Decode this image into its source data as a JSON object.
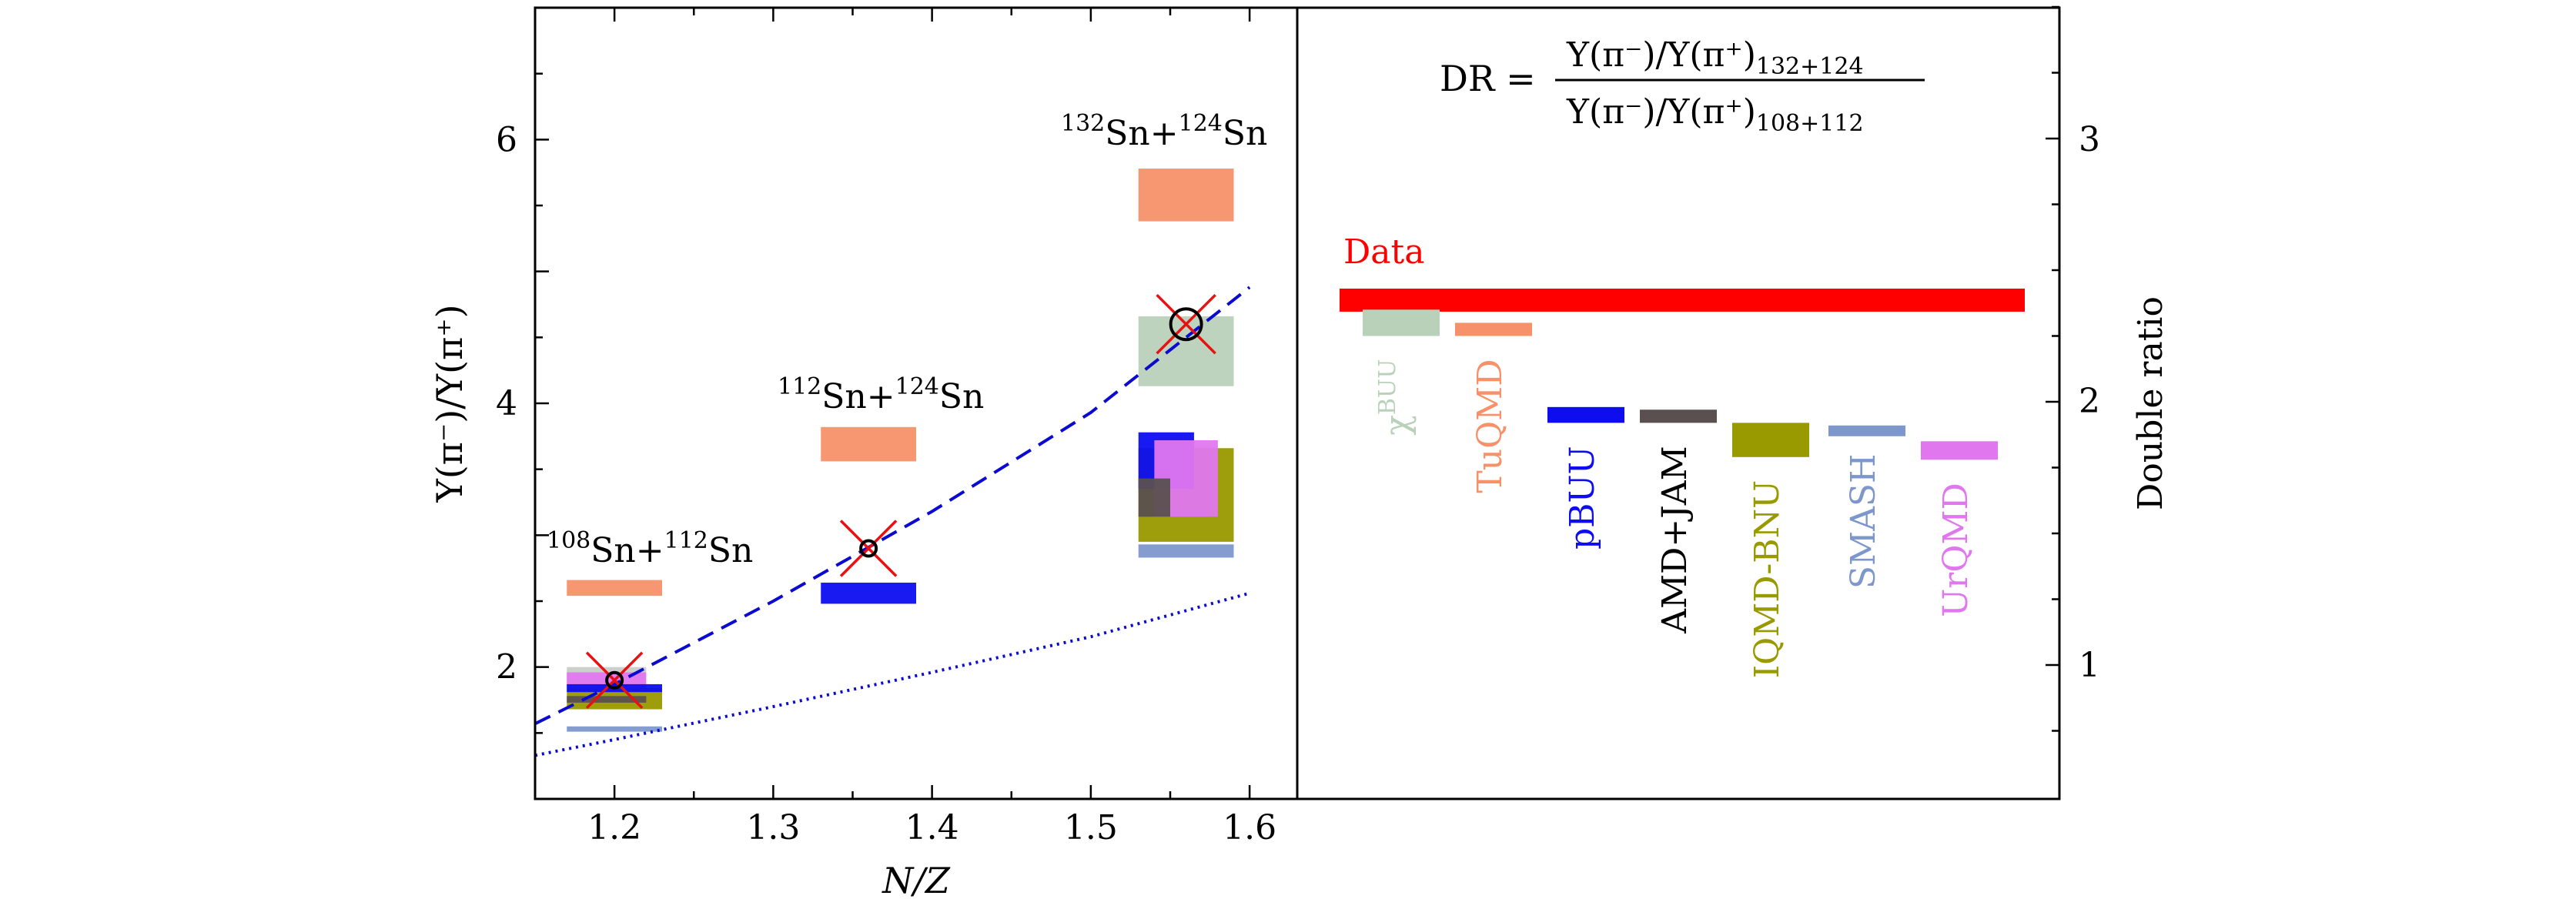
{
  "figure": {
    "background": "#ffffff",
    "frame_color": "#000000"
  },
  "chart_data": [
    {
      "type": "scatter",
      "xlabel": "N/Z",
      "ylabel": "Y(π⁻)/Y(π⁺)",
      "xlim": [
        1.15,
        1.63
      ],
      "ylim": [
        1.0,
        7.0
      ],
      "x_ticks": [
        "1.2",
        "1.3",
        "1.4",
        "1.5",
        "1.6"
      ],
      "y_ticks": [
        "2",
        "4",
        "6"
      ],
      "grid": false,
      "system_labels": [
        {
          "pre": "108",
          "a": "Sn+",
          "pre2": "112",
          "b": "Sn"
        },
        {
          "pre": "112",
          "a": "Sn+",
          "pre2": "124",
          "b": "Sn"
        },
        {
          "pre": "132",
          "a": "Sn+",
          "pre2": "124",
          "b": "Sn"
        }
      ],
      "data_points": [
        {
          "x": 1.2,
          "y": 1.9
        },
        {
          "x": 1.36,
          "y": 2.9
        },
        {
          "x": 1.56,
          "y": 4.6
        }
      ],
      "dashed_fit": [
        [
          1.15,
          1.57
        ],
        [
          1.2,
          1.87
        ],
        [
          1.3,
          2.5
        ],
        [
          1.4,
          3.18
        ],
        [
          1.5,
          3.93
        ],
        [
          1.6,
          4.88
        ]
      ],
      "dotted_curve": [
        [
          1.15,
          1.33
        ],
        [
          1.2,
          1.45
        ],
        [
          1.3,
          1.7
        ],
        [
          1.4,
          1.96
        ],
        [
          1.5,
          2.23
        ],
        [
          1.6,
          2.56
        ]
      ],
      "model_bands": [
        {
          "model": "TuQMD",
          "color": "#f7916a",
          "x": [
            1.17,
            1.23
          ],
          "y": [
            2.54,
            2.66
          ]
        },
        {
          "model": "TuQMD",
          "color": "#f7916a",
          "x": [
            1.33,
            1.39
          ],
          "y": [
            3.56,
            3.82
          ]
        },
        {
          "model": "TuQMD",
          "color": "#f7916a",
          "x": [
            1.53,
            1.59
          ],
          "y": [
            5.38,
            5.78
          ]
        },
        {
          "model": "pBUU",
          "color": "#0d0df0",
          "x": [
            1.33,
            1.39
          ],
          "y": [
            2.48,
            2.64
          ]
        },
        {
          "model": "χBUU",
          "color": "#b9d1b9",
          "x": [
            1.53,
            1.59
          ],
          "y": [
            4.13,
            4.66
          ]
        },
        {
          "model": "IQMD-BNU",
          "color": "#999900",
          "x": [
            1.53,
            1.59
          ],
          "y": [
            2.95,
            3.66
          ]
        },
        {
          "model": "pBUU",
          "color": "#0d0df0",
          "x": [
            1.53,
            1.565
          ],
          "y": [
            3.35,
            3.78
          ]
        },
        {
          "model": "UrQMD",
          "color": "#e077ef",
          "x": [
            1.54,
            1.58
          ],
          "y": [
            3.14,
            3.72
          ]
        },
        {
          "model": "AMD+JAM",
          "color": "#5a5050",
          "x": [
            1.53,
            1.55
          ],
          "y": [
            3.14,
            3.43
          ]
        },
        {
          "model": "SMASH",
          "color": "#7d97cc",
          "x": [
            1.53,
            1.59
          ],
          "y": [
            2.83,
            2.93
          ]
        },
        {
          "model": "χBUU",
          "color": "#c9cdc9",
          "x": [
            1.17,
            1.22
          ],
          "y": [
            1.85,
            2.0
          ]
        },
        {
          "model": "UrQMD",
          "color": "#e077ef",
          "x": [
            1.17,
            1.22
          ],
          "y": [
            1.84,
            1.96
          ]
        },
        {
          "model": "IQMD-BNU",
          "color": "#999900",
          "x": [
            1.17,
            1.23
          ],
          "y": [
            1.68,
            1.84
          ]
        },
        {
          "model": "pBUU",
          "color": "#0d0df0",
          "x": [
            1.17,
            1.23
          ],
          "y": [
            1.81,
            1.87
          ]
        },
        {
          "model": "AMD+JAM",
          "color": "#5a5050",
          "x": [
            1.17,
            1.22
          ],
          "y": [
            1.73,
            1.78
          ]
        },
        {
          "model": "SMASH",
          "color": "#7d97cc",
          "x": [
            1.17,
            1.23
          ],
          "y": [
            1.51,
            1.55
          ]
        }
      ]
    },
    {
      "type": "bar",
      "ylabel": "Double ratio",
      "ylim": [
        0.5,
        2.0
      ],
      "y_ticks": [
        "1",
        "2",
        "3"
      ],
      "formula": {
        "lhs": "DR",
        "numerator": "Y(π⁻)/Y(π⁺)",
        "numerator_sub": "132+124",
        "denominator": "Y(π⁻)/Y(π⁺)",
        "denominator_sub": "108+112"
      },
      "data_band": {
        "label": "Data",
        "color": "#ff0000",
        "value_range": [
          2.38,
          2.43
        ]
      },
      "models": [
        {
          "name": "χ",
          "sup": "BUU",
          "color": "#b9d1b9",
          "range": [
            2.25,
            2.35
          ]
        },
        {
          "name": "TuQMD",
          "color": "#f7916a",
          "range": [
            2.25,
            2.3
          ]
        },
        {
          "name": "pBUU",
          "color": "#0d0df0",
          "range": [
            1.92,
            1.98
          ]
        },
        {
          "name": "AMD+JAM",
          "color": "#5a5050",
          "range": [
            1.92,
            1.97
          ]
        },
        {
          "name": "IQMD-BNU",
          "color": "#999900",
          "range": [
            1.79,
            1.92
          ]
        },
        {
          "name": "SMASH",
          "color": "#7d97cc",
          "range": [
            1.89,
            1.91
          ]
        },
        {
          "name": "UrQMD",
          "color": "#e077ef",
          "range": [
            1.78,
            1.85
          ]
        }
      ]
    }
  ]
}
